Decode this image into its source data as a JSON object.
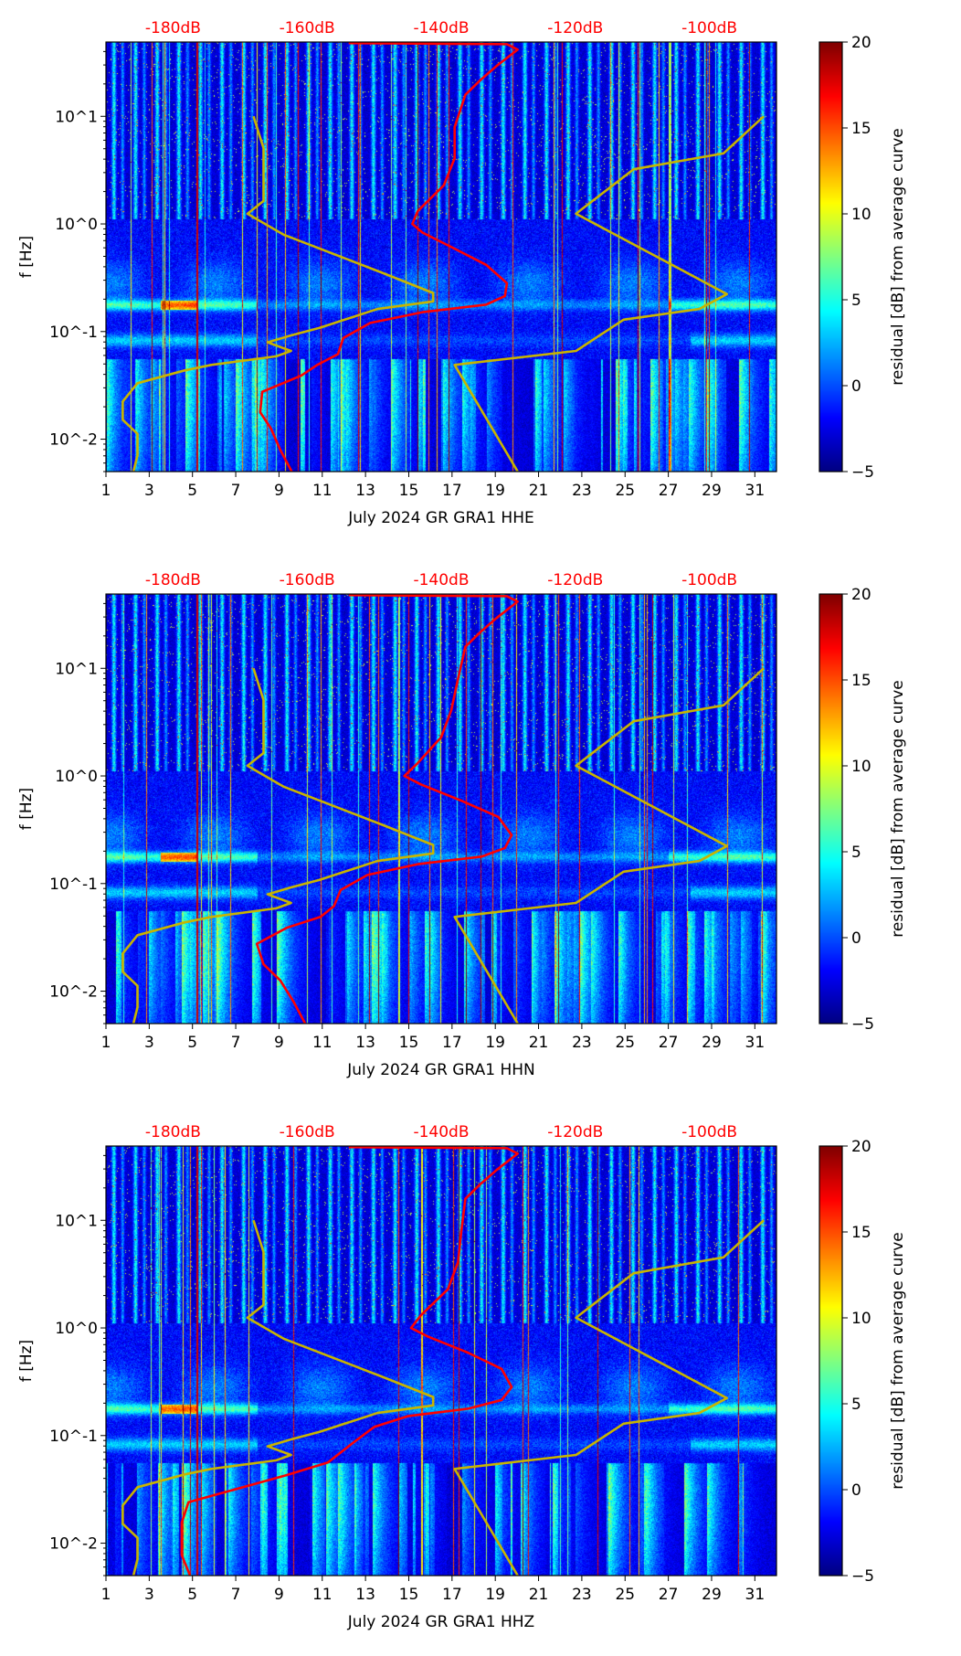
{
  "chart_data": {
    "type": "heatmap",
    "shared": {
      "x_range_days": [
        1,
        32
      ],
      "x_ticks": [
        1,
        3,
        5,
        7,
        9,
        11,
        13,
        15,
        17,
        19,
        21,
        23,
        25,
        27,
        29,
        31
      ],
      "y_scale": "log",
      "y_label": "f [Hz]",
      "y_range_hz": [
        0.005,
        49
      ],
      "y_ticks": [
        {
          "value": 10,
          "label": "10^1",
          "base": "10",
          "exp": "1"
        },
        {
          "value": 1,
          "label": "10^0",
          "base": "10",
          "exp": "0"
        },
        {
          "value": 0.1,
          "label": "10^-1",
          "base": "10",
          "exp": "−1"
        },
        {
          "value": 0.01,
          "label": "10^-2",
          "base": "10",
          "exp": "−2"
        }
      ],
      "top_axis_range_db": [
        -190,
        -90
      ],
      "top_axis_ticks": [
        {
          "value": -180,
          "label": "-180dB"
        },
        {
          "value": -160,
          "label": "-160dB"
        },
        {
          "value": -140,
          "label": "-140dB"
        },
        {
          "value": -120,
          "label": "-120dB"
        },
        {
          "value": -100,
          "label": "-100dB"
        }
      ],
      "colorbar": {
        "label": "residual [dB] from average curve",
        "range": [
          -5,
          20
        ],
        "ticks": [
          {
            "value": 20,
            "label": "20"
          },
          {
            "value": 15,
            "label": "15"
          },
          {
            "value": 10,
            "label": "10"
          },
          {
            "value": 5,
            "label": "5"
          },
          {
            "value": 0,
            "label": "0"
          },
          {
            "value": -5,
            "label": "−5"
          }
        ],
        "colormap": "jet"
      },
      "nlnm_curve": {
        "color": "#c8b400",
        "db": [
          -168,
          -166.5,
          -166.5,
          -168.9,
          -163.5,
          -148.7,
          -141.2,
          -141.2,
          -149.5,
          -158.2,
          -162.4,
          -165.9,
          -162.4,
          -164.6,
          -174.3,
          -178.2,
          -185.3,
          -187.5,
          -187.5,
          -185.3,
          -185.3,
          -185.9
        ],
        "log10_f": [
          1,
          0.705,
          0.213,
          0.095,
          -0.1,
          -0.456,
          -0.642,
          -0.72,
          -0.79,
          -0.967,
          -1.036,
          -1.1,
          -1.18,
          -1.23,
          -1.31,
          -1.36,
          -1.48,
          -1.65,
          -1.82,
          -1.95,
          -2.15,
          -2.3
        ]
      },
      "nhnm_curve": {
        "color": "#c8b400",
        "db": [
          -91.9,
          -97.9,
          -111.3,
          -119.9,
          -97.4,
          -101.5,
          -112.8,
          -119.9,
          -138.0,
          -128.6
        ],
        "log10_f": [
          1,
          0.656,
          0.508,
          0.095,
          -0.652,
          -0.79,
          -0.89,
          -1.18,
          -1.31,
          -2.3
        ]
      },
      "median_color": "#ff0000"
    },
    "panels": [
      {
        "xlabel": "July 2024 GR GRA1  HHE",
        "seed": 11,
        "median_db": [
          -153.8,
          -130.2,
          -128.6,
          -131.7,
          -134.1,
          -136.4,
          -138.0,
          -138.0,
          -139.6,
          -143.5,
          -144.3,
          -142.8,
          -138.0,
          -133.3,
          -130.2,
          -130.5,
          -133.3,
          -142.8,
          -150.6,
          -154.6,
          -155.4,
          -158.5,
          -160.9,
          -166.7,
          -167.0,
          -165.4,
          -164.0,
          -162.3
        ],
        "median_log10_f": [
          1.68,
          1.67,
          1.62,
          1.47,
          1.34,
          1.2,
          0.9,
          0.61,
          0.36,
          0.12,
          0,
          -0.08,
          -0.23,
          -0.38,
          -0.55,
          -0.67,
          -0.75,
          -0.82,
          -0.92,
          -1.06,
          -1.21,
          -1.31,
          -1.41,
          -1.56,
          -1.75,
          -1.9,
          -2.1,
          -2.3
        ]
      },
      {
        "xlabel": "July 2024 GR GRA1  HHN",
        "seed": 23,
        "median_db": [
          -153.8,
          -130.2,
          -128.6,
          -131.7,
          -134.1,
          -136.4,
          -137.5,
          -138.5,
          -140.0,
          -143.5,
          -145.5,
          -143.0,
          -137.0,
          -131.5,
          -129.5,
          -130.5,
          -134.0,
          -143.5,
          -151.0,
          -155.0,
          -156.0,
          -158.0,
          -163.0,
          -167.5,
          -166.5,
          -164.0,
          -162.0,
          -160.3
        ],
        "median_log10_f": [
          1.68,
          1.67,
          1.62,
          1.47,
          1.34,
          1.2,
          0.9,
          0.61,
          0.36,
          0.12,
          0,
          -0.08,
          -0.23,
          -0.38,
          -0.55,
          -0.67,
          -0.75,
          -0.82,
          -0.92,
          -1.06,
          -1.21,
          -1.31,
          -1.41,
          -1.56,
          -1.75,
          -1.9,
          -2.1,
          -2.3
        ]
      },
      {
        "xlabel": "July 2024 GR GRA1  HHZ",
        "seed": 37,
        "median_db": [
          -153.8,
          -130.2,
          -128.6,
          -131.7,
          -134.1,
          -136.4,
          -137.0,
          -137.5,
          -139.0,
          -143.0,
          -144.5,
          -142.0,
          -136.0,
          -131.0,
          -129.5,
          -131.0,
          -136.0,
          -145.0,
          -150.0,
          -153.0,
          -156.9,
          -163.2,
          -171.9,
          -177.7,
          -178.7,
          -178.7,
          -177.4
        ],
        "median_log10_f": [
          1.68,
          1.67,
          1.62,
          1.47,
          1.34,
          1.2,
          0.9,
          0.61,
          0.36,
          0.12,
          0,
          -0.08,
          -0.23,
          -0.38,
          -0.55,
          -0.67,
          -0.75,
          -0.82,
          -0.92,
          -1.06,
          -1.25,
          -1.37,
          -1.52,
          -1.62,
          -1.81,
          -2.11,
          -2.31
        ]
      }
    ]
  }
}
